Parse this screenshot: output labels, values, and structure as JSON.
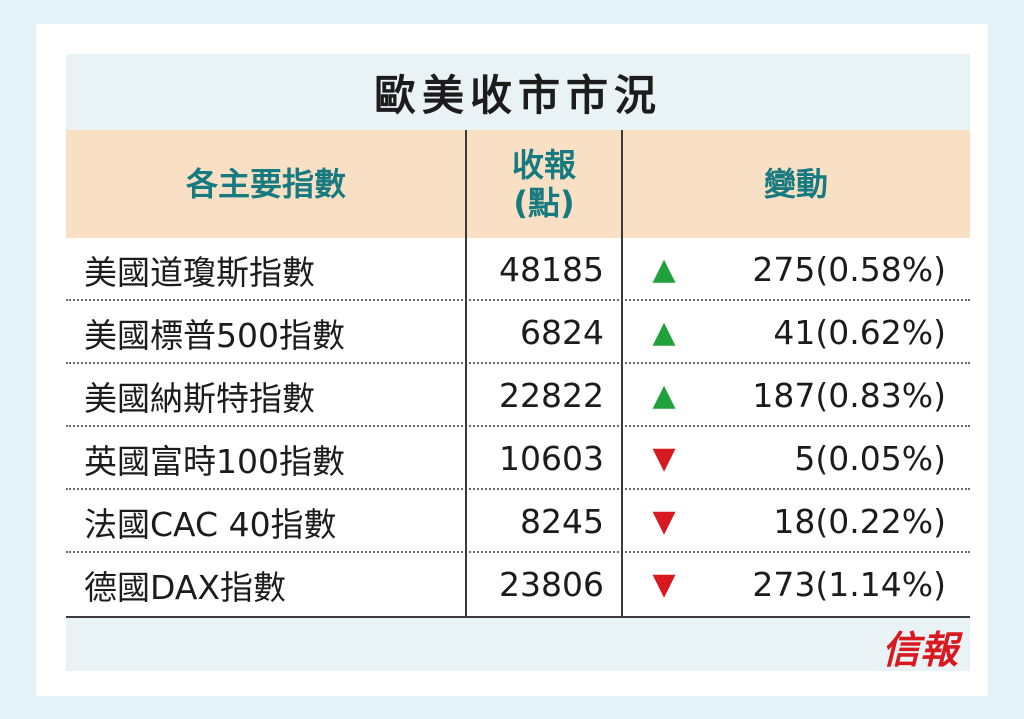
{
  "title": "歐美收市市況",
  "header": {
    "col1": "各主要指數",
    "col2_line1": "收報",
    "col2_line2": "(點)",
    "col3": "變動"
  },
  "rows": [
    {
      "name": "美國道瓊斯指數",
      "close": "48185",
      "direction": "up",
      "arrow": "▲",
      "change": "275(0.58%)"
    },
    {
      "name": "美國標普500指數",
      "close": "6824",
      "direction": "up",
      "arrow": "▲",
      "change": "41(0.62%)"
    },
    {
      "name": "美國納斯特指數",
      "close": "22822",
      "direction": "up",
      "arrow": "▲",
      "change": "187(0.83%)"
    },
    {
      "name": "英國富時100指數",
      "close": "10603",
      "direction": "down",
      "arrow": "▼",
      "change": "5(0.05%)"
    },
    {
      "name": "法國CAC 40指數",
      "close": "8245",
      "direction": "down",
      "arrow": "▼",
      "change": "18(0.22%)"
    },
    {
      "name": "德國DAX指數",
      "close": "23806",
      "direction": "down",
      "arrow": "▼",
      "change": "273(1.14%)"
    }
  ],
  "colors": {
    "up": "#21a13b",
    "down": "#d8191f"
  },
  "logo": "信報"
}
